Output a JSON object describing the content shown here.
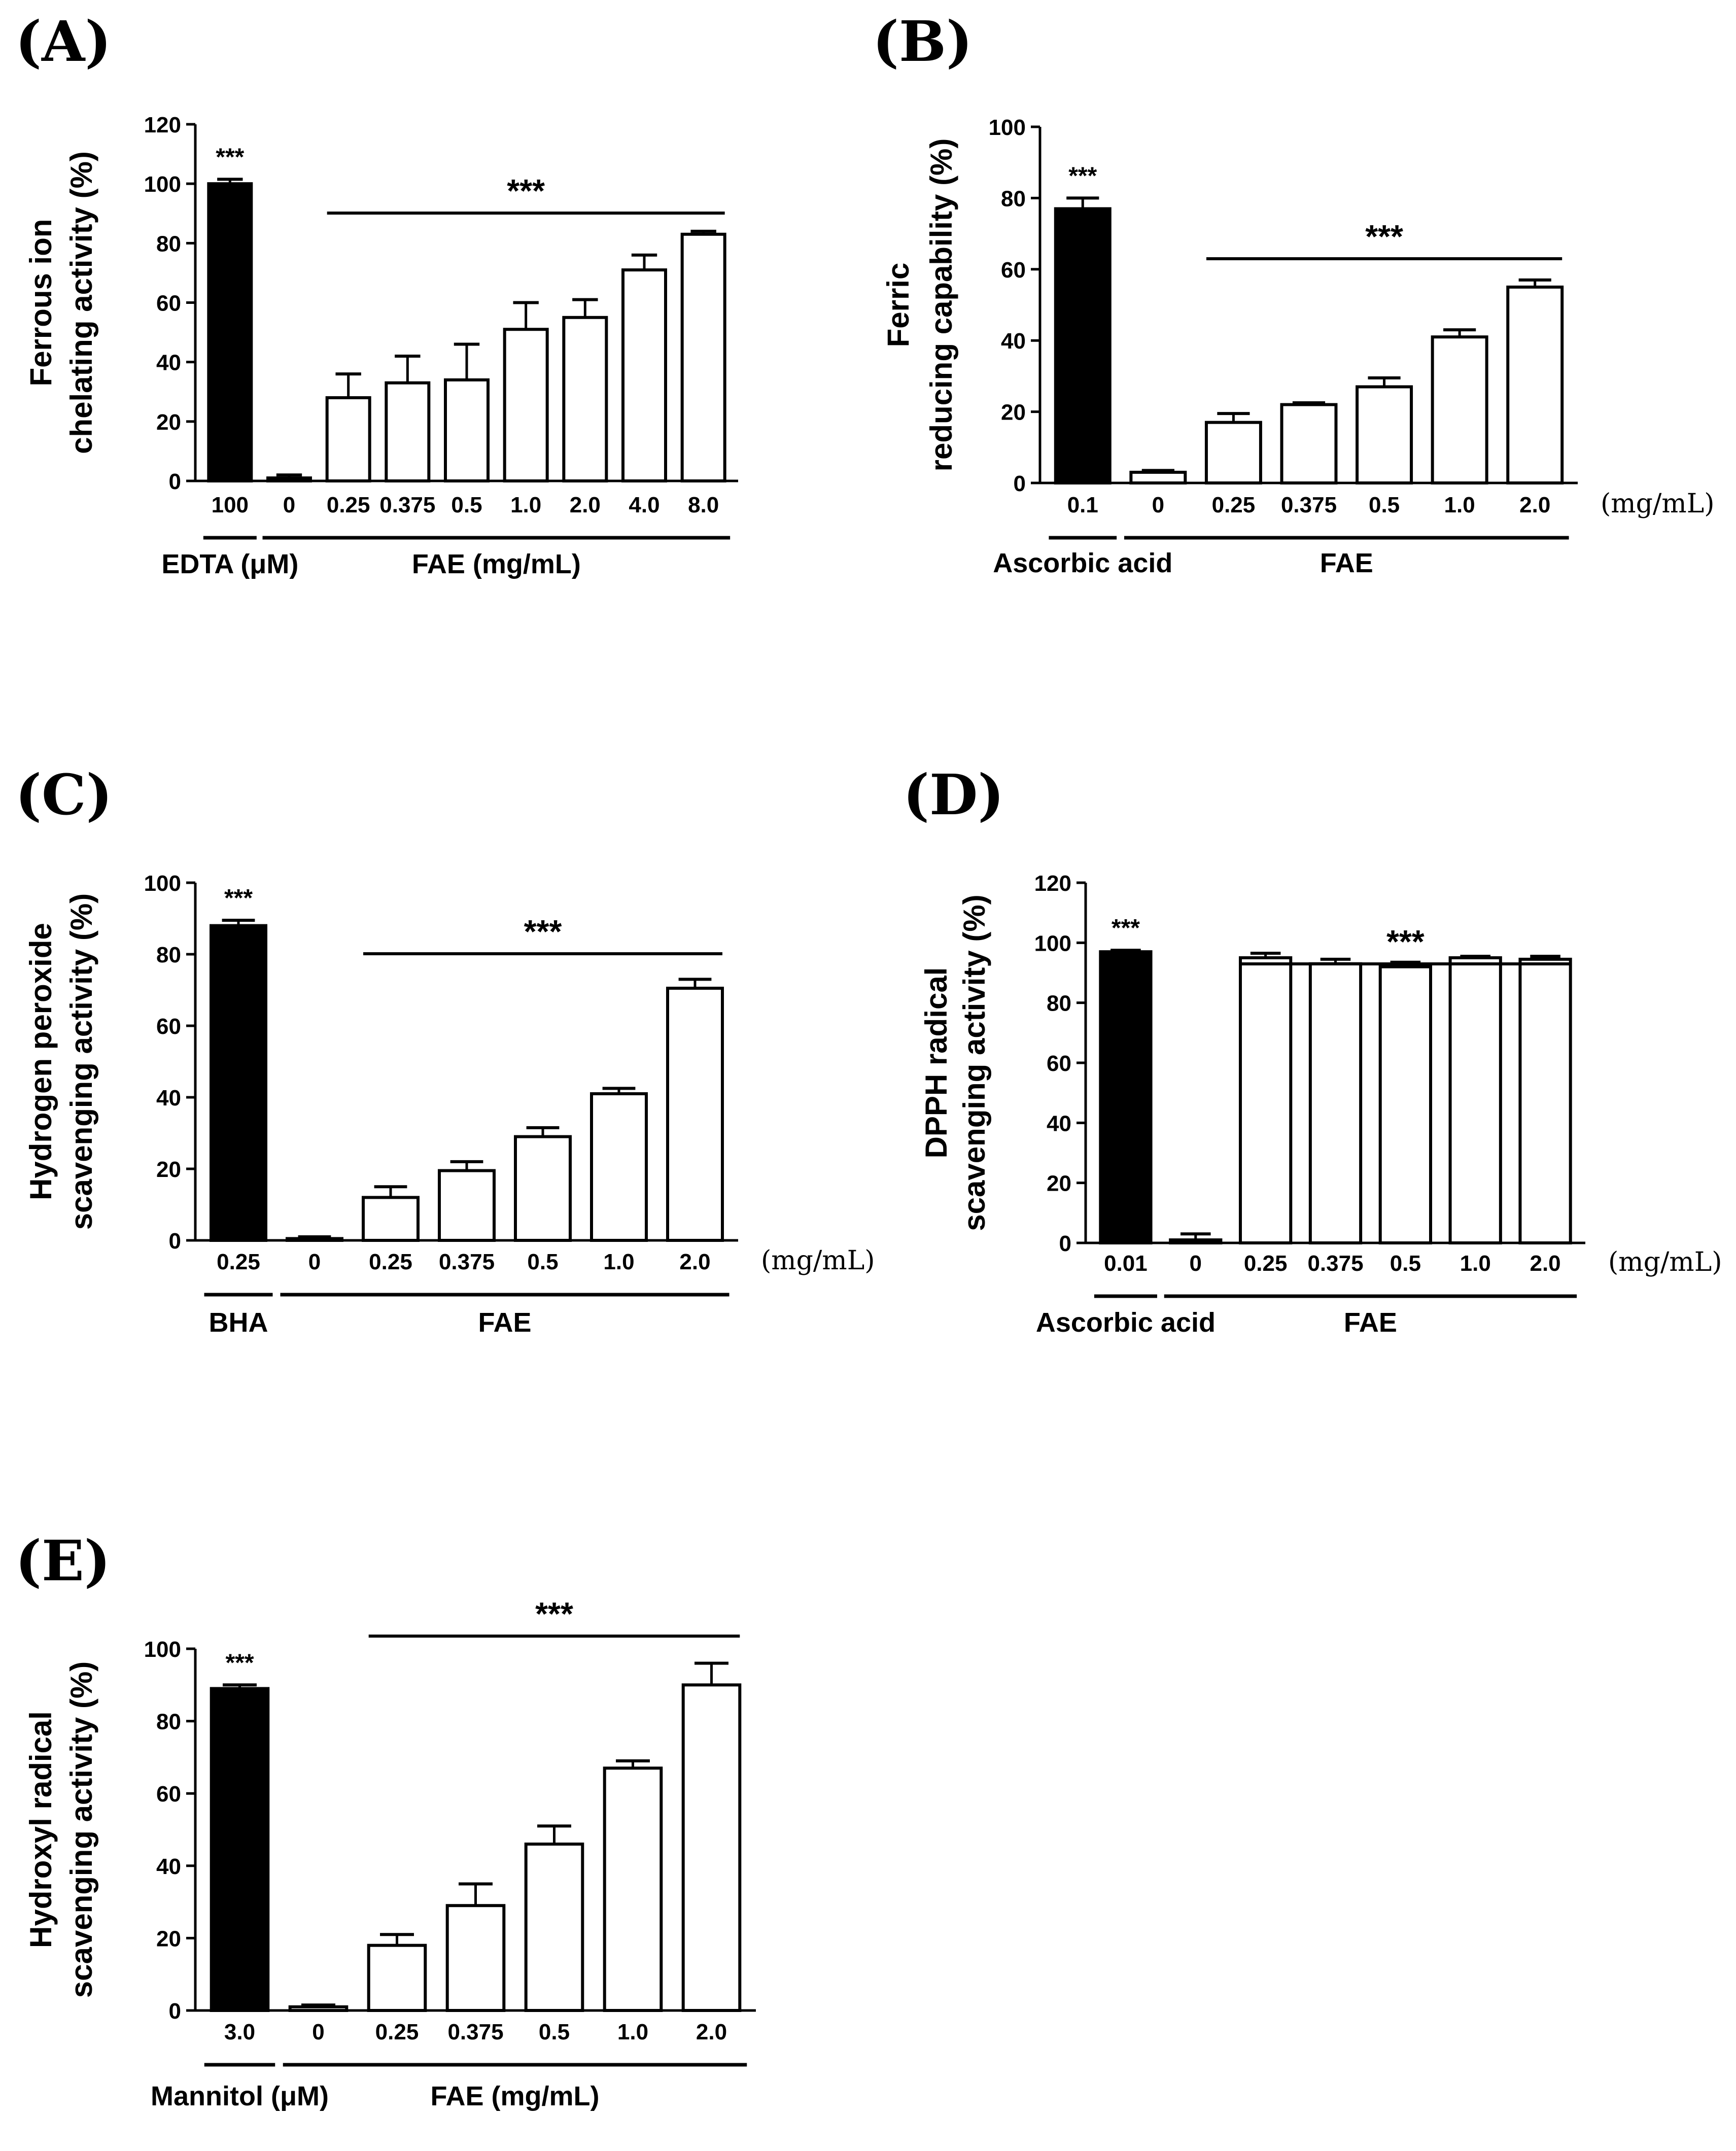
{
  "chart_data": [
    {
      "type": "bar",
      "panel": "(A)",
      "ylabel_lines": [
        "Ferrous ion",
        "chelating activity (%)"
      ],
      "ylim": [
        0,
        120
      ],
      "yticks": [
        0,
        20,
        40,
        60,
        80,
        100,
        120
      ],
      "categories": [
        "100",
        "0",
        "0.25",
        "0.375",
        "0.5",
        "1.0",
        "2.0",
        "4.0",
        "8.0"
      ],
      "values": [
        100,
        1,
        28,
        33,
        34,
        51,
        55,
        71,
        83
      ],
      "errors": [
        1.5,
        1,
        8,
        9,
        12,
        9,
        6,
        5,
        1
      ],
      "fill": [
        "black",
        "white",
        "white",
        "white",
        "white",
        "white",
        "white",
        "white",
        "white"
      ],
      "control_stars": "***",
      "group_stars": "***",
      "groups": [
        {
          "label": "EDTA (μM)",
          "from": 0,
          "to": 0
        },
        {
          "label": "FAE (mg/mL)",
          "from": 1,
          "to": 8
        }
      ],
      "unit": "",
      "star_line_from": 2
    },
    {
      "type": "bar",
      "panel": "(B)",
      "ylabel_lines": [
        "Ferric",
        "reducing capability (%)"
      ],
      "ylim": [
        0,
        100
      ],
      "yticks": [
        0,
        20,
        40,
        60,
        80,
        100
      ],
      "categories": [
        "0.1",
        "0",
        "0.25",
        "0.375",
        "0.5",
        "1.0",
        "2.0"
      ],
      "values": [
        77,
        3,
        17,
        22,
        27,
        41,
        55
      ],
      "errors": [
        3,
        0.5,
        2.5,
        0.5,
        2.5,
        2,
        2
      ],
      "fill": [
        "black",
        "white",
        "white",
        "white",
        "white",
        "white",
        "white"
      ],
      "control_stars": "***",
      "group_stars": "***",
      "groups": [
        {
          "label": "Ascorbic acid",
          "from": 0,
          "to": 0
        },
        {
          "label": "FAE",
          "from": 1,
          "to": 6
        }
      ],
      "unit": "(mg/mL)",
      "star_line_from": 2
    },
    {
      "type": "bar",
      "panel": "(C)",
      "ylabel_lines": [
        "Hydrogen peroxide",
        "scavenging activity (%)"
      ],
      "ylim": [
        0,
        100
      ],
      "yticks": [
        0,
        20,
        40,
        60,
        80,
        100
      ],
      "categories": [
        "0.25",
        "0",
        "0.25",
        "0.375",
        "0.5",
        "1.0",
        "2.0"
      ],
      "values": [
        88,
        0.5,
        12,
        19.5,
        29,
        41,
        70.5
      ],
      "errors": [
        1.5,
        0.5,
        3,
        2.5,
        2.5,
        1.5,
        2.5
      ],
      "fill": [
        "black",
        "white",
        "white",
        "white",
        "white",
        "white",
        "white"
      ],
      "control_stars": "***",
      "group_stars": "***",
      "groups": [
        {
          "label": "BHA",
          "from": 0,
          "to": 0
        },
        {
          "label": "FAE",
          "from": 1,
          "to": 6
        }
      ],
      "unit": "(mg/mL)",
      "star_line_from": 2
    },
    {
      "type": "bar",
      "panel": "(D)",
      "ylabel_lines": [
        "DPPH radical",
        "scavenging activity (%)"
      ],
      "ylim": [
        0,
        120
      ],
      "yticks": [
        0,
        20,
        40,
        60,
        80,
        100,
        120
      ],
      "categories": [
        "0.01",
        "0",
        "0.25",
        "0.375",
        "0.5",
        "1.0",
        "2.0"
      ],
      "values": [
        97,
        1,
        95,
        93,
        92,
        95,
        94.5
      ],
      "errors": [
        0.5,
        2,
        1.5,
        1.5,
        1.5,
        0.5,
        1
      ],
      "fill": [
        "black",
        "white",
        "white",
        "white",
        "white",
        "white",
        "white"
      ],
      "control_stars": "***",
      "group_stars": "***",
      "groups": [
        {
          "label": "Ascorbic acid",
          "from": 0,
          "to": 0
        },
        {
          "label": "FAE",
          "from": 1,
          "to": 6
        }
      ],
      "unit": "(mg/mL)",
      "star_line_from": 2
    },
    {
      "type": "bar",
      "panel": "(E)",
      "ylabel_lines": [
        "Hydroxyl radical",
        "scavenging activity (%)"
      ],
      "ylim": [
        0,
        100
      ],
      "yticks": [
        0,
        20,
        40,
        60,
        80,
        100
      ],
      "categories": [
        "3.0",
        "0",
        "0.25",
        "0.375",
        "0.5",
        "1.0",
        "2.0"
      ],
      "values": [
        89,
        1,
        18,
        29,
        46,
        67,
        90
      ],
      "errors": [
        1,
        0.5,
        3,
        6,
        5,
        2,
        6
      ],
      "fill": [
        "black",
        "white",
        "white",
        "white",
        "white",
        "white",
        "white"
      ],
      "control_stars": "***",
      "group_stars": "***",
      "groups": [
        {
          "label": "Mannitol (μM)",
          "from": 0,
          "to": 0
        },
        {
          "label": "FAE (mg/mL)",
          "from": 1,
          "to": 6
        }
      ],
      "unit": "",
      "star_line_from": 2
    }
  ]
}
